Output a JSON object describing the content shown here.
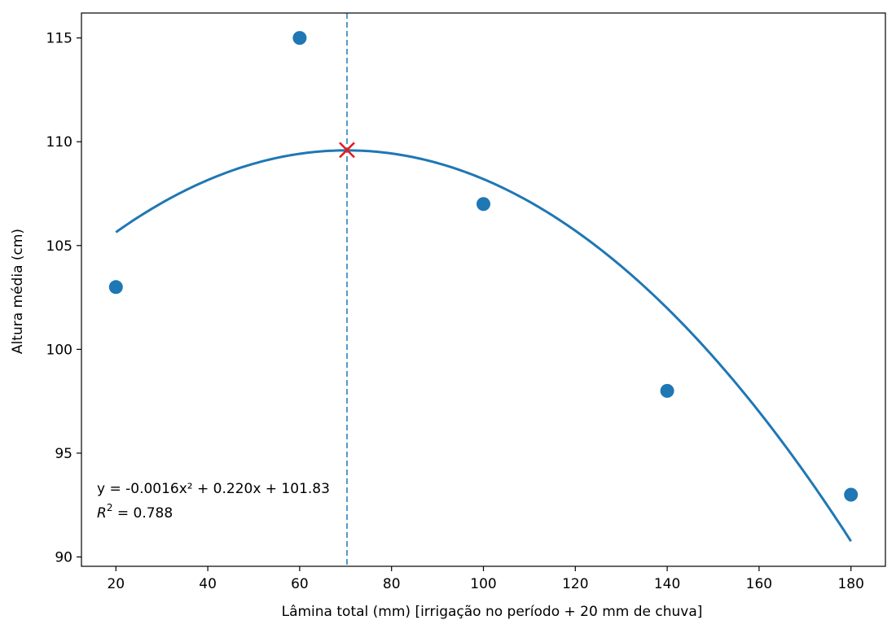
{
  "chart_data": {
    "type": "scatter",
    "xlabel": "Lâmina total (mm)  [irrigação no período + 20 mm de chuva]",
    "ylabel": "Altura média (cm)",
    "xlim": [
      12.5,
      187.5
    ],
    "ylim": [
      89.55,
      116.2
    ],
    "xticks": [
      20,
      40,
      60,
      80,
      100,
      120,
      140,
      160,
      180
    ],
    "yticks": [
      90,
      95,
      100,
      105,
      110,
      115
    ],
    "grid": false,
    "points": {
      "x": [
        20,
        60,
        100,
        140,
        180
      ],
      "y": [
        103,
        115,
        107,
        98,
        93
      ],
      "color": "#1f77b4"
    },
    "fit_curve": {
      "x_range": [
        20,
        180
      ],
      "color": "#1f77b4",
      "predicted": {
        "x": [
          20,
          60,
          100,
          140,
          180
        ],
        "y": [
          105.6,
          109.5,
          108.2,
          101.9,
          90.8
        ]
      }
    },
    "optimum": {
      "x": 70.3,
      "y": 109.6,
      "marker": "x",
      "color": "#e41a1c",
      "vline_color": "#1f77b4"
    },
    "annotation": {
      "equation": "y = -0.0016x² + 0.220x + 101.83",
      "r2_label": "R",
      "r2_sup": "2",
      "r2_value": " = 0.788"
    }
  }
}
